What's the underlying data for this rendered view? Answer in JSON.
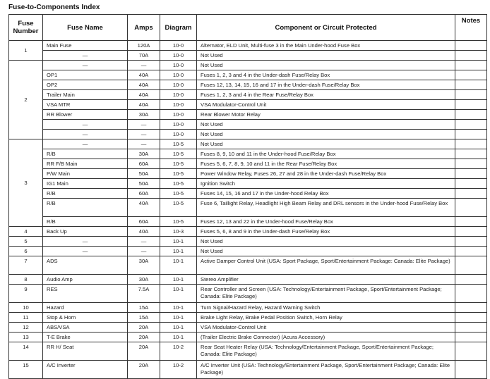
{
  "title": "Fuse-to-Components Index",
  "headers": [
    "Fuse Number",
    "Fuse Name",
    "Amps",
    "Diagram",
    "Component or Circuit Protected",
    "Notes"
  ],
  "groups": [
    {
      "number": "1",
      "rows": [
        {
          "name": "Main Fuse",
          "amps": "120A",
          "diagram": "10-0",
          "component": "Alternator, ELD Unit, Multi-fuse 3 in the Main Under-hood Fuse Box"
        },
        {
          "name": "—",
          "amps": "70A",
          "diagram": "10-0",
          "component": "Not Used"
        }
      ]
    },
    {
      "number": "2",
      "rows": [
        {
          "name": "—",
          "amps": "—",
          "diagram": "10-0",
          "component": "Not Used"
        },
        {
          "name": "OP1",
          "amps": "40A",
          "diagram": "10-0",
          "component": "Fuses 1, 2, 3 and 4 in the Under-dash Fuse/Relay Box"
        },
        {
          "name": "OP2",
          "amps": "40A",
          "diagram": "10-0",
          "component": "Fuses 12, 13, 14, 15, 16 and 17 in the Under-dash Fuse/Relay Box"
        },
        {
          "name": "Trailer Main",
          "amps": "40A",
          "diagram": "10-0",
          "component": "Fuses 1, 2, 3 and 4 in the Rear Fuse/Relay Box"
        },
        {
          "name": "VSA MTR",
          "amps": "40A",
          "diagram": "10-0",
          "component": "VSA Modulator-Control Unit"
        },
        {
          "name": "RR Blower",
          "amps": "30A",
          "diagram": "10-0",
          "component": "Rear Blower Motor Relay"
        },
        {
          "name": "—",
          "amps": "—",
          "diagram": "10-0",
          "component": "Not Used"
        },
        {
          "name": "—",
          "amps": "—",
          "diagram": "10-0",
          "component": "Not Used"
        }
      ]
    },
    {
      "number": "3",
      "rows": [
        {
          "name": "—",
          "amps": "—",
          "diagram": "10-5",
          "component": "Not Used"
        },
        {
          "name": "R/B",
          "amps": "30A",
          "diagram": "10-5",
          "component": "Fuses 8, 9, 10 and 11 in the Under-hood Fuse/Relay Box"
        },
        {
          "name": "RR F/B Main",
          "amps": "60A",
          "diagram": "10-5",
          "component": "Fuses 5, 6, 7, 8, 9, 10 and 11 in the Rear Fuse/Relay Box"
        },
        {
          "name": "P/W Main",
          "amps": "50A",
          "diagram": "10-5",
          "component": "Power Window Relay, Fuses 26, 27 and 28 in the Under-dash Fuse/Relay Box"
        },
        {
          "name": "IG1 Main",
          "amps": "50A",
          "diagram": "10-5",
          "component": "Ignition Switch"
        },
        {
          "name": "R/B",
          "amps": "60A",
          "diagram": "10-5",
          "component": "Fuses 14, 15, 16 and 17 in the Under-hood Relay Box"
        },
        {
          "name": "R/B",
          "amps": "40A",
          "diagram": "10-5",
          "component": "Fuse 6, Taillight Relay, Headlight High Beam Relay and DRL sensors in the Under-hood Fuse/Relay Box",
          "double": true
        },
        {
          "name": "R/B",
          "amps": "60A",
          "diagram": "10-5",
          "component": "Fuses 12, 13 and 22 in the Under-hood Fuse/Relay Box"
        }
      ]
    },
    {
      "number": "4",
      "rows": [
        {
          "name": "Back Up",
          "amps": "40A",
          "diagram": "10-3",
          "component": "Fuses 5, 6, 8 and 9 in the Under-dash Fuse/Relay Box"
        }
      ]
    },
    {
      "number": "5",
      "rows": [
        {
          "name": "—",
          "amps": "—",
          "diagram": "10-1",
          "component": "Not Used"
        }
      ]
    },
    {
      "number": "6",
      "rows": [
        {
          "name": "—",
          "amps": "—",
          "diagram": "10-1",
          "component": "Not Used"
        }
      ]
    },
    {
      "number": "7",
      "rows": [
        {
          "name": "ADS",
          "amps": "30A",
          "diagram": "10-1",
          "component": "Active Damper Control Unit (USA: Sport Package, Sport/Entertainment Package: Canada: Elite Package)",
          "double": true
        }
      ]
    },
    {
      "number": "8",
      "rows": [
        {
          "name": "Audio Amp",
          "amps": "30A",
          "diagram": "10-1",
          "component": "Stereo Amplifier"
        }
      ]
    },
    {
      "number": "9",
      "rows": [
        {
          "name": "RES",
          "amps": "7.5A",
          "diagram": "10-1",
          "component": "Rear Controller and Screen (USA: Technology/Entertainment Package, Sport/Entertainment Package; Canada: Elite Package)",
          "double": true
        }
      ]
    },
    {
      "number": "10",
      "rows": [
        {
          "name": "Hazard",
          "amps": "15A",
          "diagram": "10-1",
          "component": "Turn Signal/Hazard Relay, Hazard Warning Switch"
        }
      ]
    },
    {
      "number": "11",
      "rows": [
        {
          "name": "Stop & Horn",
          "amps": "15A",
          "diagram": "10-1",
          "component": "Brake Light Relay, Brake Pedal Position Switch, Horn Relay"
        }
      ]
    },
    {
      "number": "12",
      "rows": [
        {
          "name": "ABS/VSA",
          "amps": "20A",
          "diagram": "10-1",
          "component": "VSA Modulator-Control Unit"
        }
      ]
    },
    {
      "number": "13",
      "rows": [
        {
          "name": "T-E Brake",
          "amps": "20A",
          "diagram": "10-1",
          "component": "(Trailer Electric Brake Connector) (Acura Accessory)"
        }
      ]
    },
    {
      "number": "14",
      "rows": [
        {
          "name": "RR H/ Seat",
          "amps": "20A",
          "diagram": "10-2",
          "component": "Rear Seat Heater Relay (USA: Technology/Entertainment Package, Sport/Entertainment Package; Canada: Elite Package)",
          "double": true
        }
      ]
    },
    {
      "number": "15",
      "rows": [
        {
          "name": "A/C Inverter",
          "amps": "20A",
          "diagram": "10-2",
          "component": "A/C Inverter Unit (USA: Technology/Entertainment Package, Sport/Entertainment Package; Canada: Elite Package)",
          "double": true
        }
      ]
    }
  ]
}
